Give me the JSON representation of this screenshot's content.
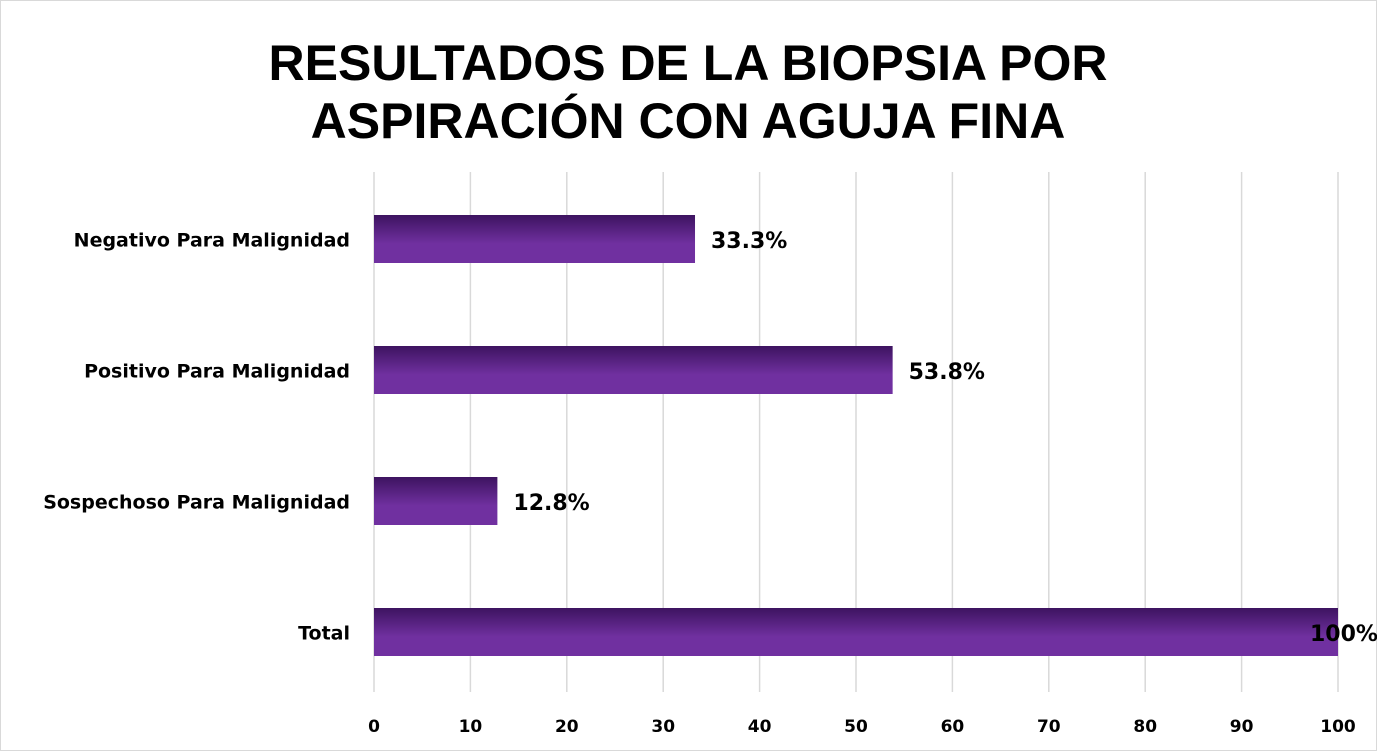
{
  "chart_data": {
    "type": "bar",
    "orientation": "horizontal",
    "title": "RESULTADOS DE LA BIOPSIA POR ASPIRACIÓN CON AGUJA FINA",
    "categories": [
      "Negativo Para Malignidad",
      "Positivo Para Malignidad",
      "Sospechoso Para Malignidad",
      "Total"
    ],
    "values": [
      33.3,
      53.8,
      12.8,
      100
    ],
    "value_labels": [
      "33.3%",
      "53.8%",
      "12.8%",
      "100%"
    ],
    "color": "#7030a0",
    "xlim": [
      0,
      100
    ],
    "xticks": [
      0,
      10,
      20,
      30,
      40,
      50,
      60,
      70,
      80,
      90,
      100
    ],
    "grid": true
  }
}
